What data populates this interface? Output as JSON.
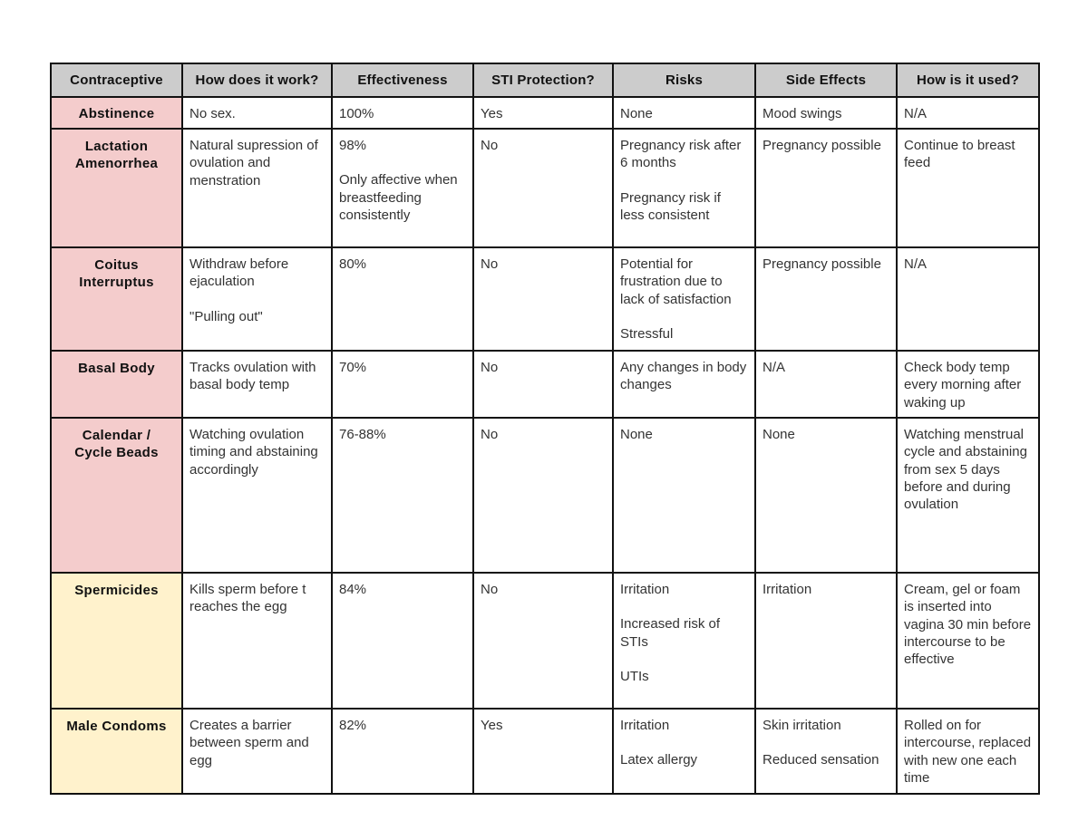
{
  "table": {
    "headers": [
      "Contraceptive",
      "How does it work?",
      "Effectiveness",
      "STI Protection?",
      "Risks",
      "Side Effects",
      "How is it used?"
    ],
    "colors": {
      "header_bg": "#cccccc",
      "natural_methods_bg": "#f4cccc",
      "barrier_chemical_bg": "#fff2cc",
      "border": "#111111"
    },
    "rows": [
      {
        "name": "Abstinence",
        "group": "pink",
        "how": [
          "No sex."
        ],
        "effectiveness": [
          "100%"
        ],
        "sti": [
          "Yes"
        ],
        "risks": [
          "None"
        ],
        "side_effects": [
          "Mood swings"
        ],
        "usage": [
          "N/A"
        ]
      },
      {
        "name": "Lactation\nAmenorrhea",
        "group": "pink",
        "how": [
          "Natural supression of ovulation and menstration"
        ],
        "effectiveness": [
          "98%",
          "Only affective when breastfeeding consistently"
        ],
        "sti": [
          "No"
        ],
        "risks": [
          "Pregnancy risk after 6 months",
          "Pregnancy risk if less consistent"
        ],
        "side_effects": [
          "Pregnancy possible"
        ],
        "usage": [
          "Continue to breast feed"
        ]
      },
      {
        "name": "Coitus\nInterruptus",
        "group": "pink",
        "how": [
          "Withdraw before ejaculation",
          "\"Pulling out\""
        ],
        "effectiveness": [
          "80%"
        ],
        "sti": [
          "No"
        ],
        "risks": [
          "Potential for frustration due to lack of satisfaction",
          "Stressful"
        ],
        "side_effects": [
          "Pregnancy possible"
        ],
        "usage": [
          "N/A"
        ]
      },
      {
        "name": "Basal Body",
        "group": "pink",
        "how": [
          "Tracks ovulation with basal body temp"
        ],
        "effectiveness": [
          "70%"
        ],
        "sti": [
          "No"
        ],
        "risks": [
          "Any changes in body changes"
        ],
        "side_effects": [
          "N/A"
        ],
        "usage": [
          "Check body temp every morning after waking up"
        ]
      },
      {
        "name": "Calendar /\nCycle Beads",
        "group": "pink",
        "how": [
          "Watching ovulation timing and abstaining accordingly"
        ],
        "effectiveness": [
          "76-88%"
        ],
        "sti": [
          "No"
        ],
        "risks": [
          "None"
        ],
        "side_effects": [
          "None"
        ],
        "usage": [
          "Watching menstrual cycle and abstaining from sex 5 days before and during ovulation"
        ]
      },
      {
        "name": "Spermicides",
        "group": "yellow",
        "how": [
          "Kills sperm before t reaches the egg"
        ],
        "effectiveness": [
          "84%"
        ],
        "sti": [
          "No"
        ],
        "risks": [
          "Irritation",
          "Increased risk of STIs",
          "UTIs"
        ],
        "side_effects": [
          "Irritation"
        ],
        "usage": [
          "Cream, gel or foam is inserted into vagina 30 min before intercourse to be effective"
        ]
      },
      {
        "name": "Male Condoms",
        "group": "yellow",
        "how": [
          "Creates a barrier between sperm and egg"
        ],
        "effectiveness": [
          "82%"
        ],
        "sti": [
          "Yes"
        ],
        "risks": [
          "Irritation",
          "Latex allergy"
        ],
        "side_effects": [
          "Skin irritation",
          "Reduced sensation"
        ],
        "usage": [
          "Rolled on for intercourse, replaced with new one each time"
        ]
      }
    ]
  }
}
